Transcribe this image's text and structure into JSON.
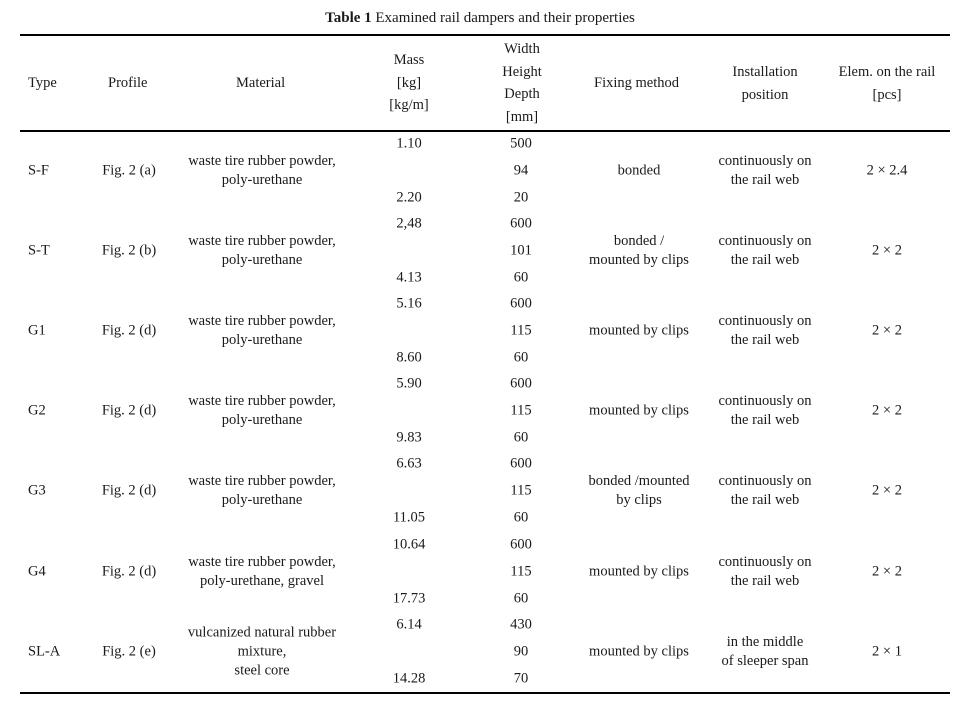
{
  "caption": {
    "label": "Table 1",
    "text": "Examined rail dampers and their properties"
  },
  "headers": {
    "type": "Type",
    "profile": "Profile",
    "material": "Material",
    "mass": [
      "Mass",
      "[kg]",
      "[kg/m]"
    ],
    "dims": [
      "Width",
      "Height",
      "Depth",
      "[mm]"
    ],
    "fixing": "Fixing method",
    "install": [
      "Installation",
      "position"
    ],
    "elem": [
      "Elem. on the rail",
      "[pcs]"
    ]
  },
  "rows": [
    {
      "type": "S-F",
      "profile": "Fig. 2 (a)",
      "material": [
        "waste tire rubber powder,",
        "poly-urethane"
      ],
      "mass_kg": "1.10",
      "mass_kgm": "2.20",
      "width": "500",
      "height": "94",
      "depth": "20",
      "fixing": [
        "bonded"
      ],
      "install": [
        "continuously on",
        "the rail web"
      ],
      "elem": "2 × 2.4"
    },
    {
      "type": "S-T",
      "profile": "Fig. 2 (b)",
      "material": [
        "waste tire rubber powder,",
        "poly-urethane"
      ],
      "mass_kg": "2,48",
      "mass_kgm": "4.13",
      "width": "600",
      "height": "101",
      "depth": "60",
      "fixing": [
        "bonded /",
        "mounted by clips"
      ],
      "install": [
        "continuously on",
        "the rail web"
      ],
      "elem": "2 × 2"
    },
    {
      "type": "G1",
      "profile": "Fig. 2 (d)",
      "material": [
        "waste tire rubber powder,",
        "poly-urethane"
      ],
      "mass_kg": "5.16",
      "mass_kgm": "8.60",
      "width": "600",
      "height": "115",
      "depth": "60",
      "fixing": [
        "mounted by clips"
      ],
      "install": [
        "continuously on",
        "the rail web"
      ],
      "elem": "2 × 2"
    },
    {
      "type": "G2",
      "profile": "Fig. 2 (d)",
      "material": [
        "waste tire rubber powder,",
        "poly-urethane"
      ],
      "mass_kg": "5.90",
      "mass_kgm": "9.83",
      "width": "600",
      "height": "115",
      "depth": "60",
      "fixing": [
        "mounted by clips"
      ],
      "install": [
        "continuously on",
        "the rail web"
      ],
      "elem": "2 × 2"
    },
    {
      "type": "G3",
      "profile": "Fig. 2 (d)",
      "material": [
        "waste tire rubber powder,",
        "poly-urethane"
      ],
      "mass_kg": "6.63",
      "mass_kgm": "11.05",
      "width": "600",
      "height": "115",
      "depth": "60",
      "fixing": [
        "bonded /mounted",
        "by clips"
      ],
      "install": [
        "continuously on",
        "the rail web"
      ],
      "elem": "2 × 2"
    },
    {
      "type": "G4",
      "profile": "Fig. 2 (d)",
      "material": [
        "waste tire rubber powder,",
        "poly-urethane, gravel"
      ],
      "mass_kg": "10.64",
      "mass_kgm": "17.73",
      "width": "600",
      "height": "115",
      "depth": "60",
      "fixing": [
        "mounted by clips"
      ],
      "install": [
        "continuously on",
        "the rail web"
      ],
      "elem": "2 × 2"
    },
    {
      "type": "SL-A",
      "profile": "Fig. 2 (e)",
      "material": [
        "vulcanized natural rubber",
        "mixture,",
        "steel core"
      ],
      "mass_kg": "6.14",
      "mass_kgm": "14.28",
      "width": "430",
      "height": "90",
      "depth": "70",
      "fixing": [
        "mounted by clips"
      ],
      "install": [
        "in the middle",
        "of sleeper span"
      ],
      "elem": "2 × 1"
    }
  ]
}
